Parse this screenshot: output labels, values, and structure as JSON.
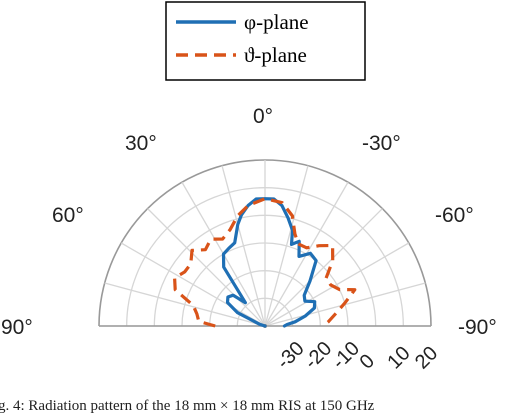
{
  "chart_data": {
    "type": "polar",
    "subtype": "half-polar radiation pattern",
    "theta_ticks": [
      "90°",
      "60°",
      "30°",
      "0°",
      "-30°",
      "-60°",
      "-90°"
    ],
    "theta_tick_values": [
      90,
      60,
      30,
      0,
      -30,
      -60,
      -90
    ],
    "r_ticks": [
      "-30",
      "-20",
      "-10",
      "0",
      "10",
      "20"
    ],
    "r_tick_values": [
      -30,
      -20,
      -10,
      0,
      10,
      20
    ],
    "rlim": [
      -40,
      20
    ],
    "grid": true,
    "legend_position": "top-center",
    "series": [
      {
        "name": "φ-plane",
        "color": "#1f6fb4",
        "style": "solid",
        "points": [
          [
            90,
            -40
          ],
          [
            80,
            -40
          ],
          [
            72,
            -38
          ],
          [
            64,
            -29
          ],
          [
            58,
            -24
          ],
          [
            52,
            -23
          ],
          [
            46,
            -24
          ],
          [
            40,
            -29
          ],
          [
            35,
            -14
          ],
          [
            30,
            -10
          ],
          [
            25,
            -9
          ],
          [
            20,
            -8
          ],
          [
            15,
            -2
          ],
          [
            12,
            1
          ],
          [
            8,
            4
          ],
          [
            4,
            6
          ],
          [
            0,
            6
          ],
          [
            -4,
            6
          ],
          [
            -8,
            4
          ],
          [
            -12,
            0
          ],
          [
            -16,
            -4
          ],
          [
            -18,
            -9
          ],
          [
            -22,
            -7
          ],
          [
            -26,
            -12
          ],
          [
            -32,
            -9
          ],
          [
            -38,
            -10
          ],
          [
            -45,
            -17
          ],
          [
            -52,
            -22
          ],
          [
            -58,
            -23
          ],
          [
            -64,
            -20
          ],
          [
            -70,
            -21
          ],
          [
            -76,
            -25
          ],
          [
            -82,
            -29
          ],
          [
            -86,
            -32
          ],
          [
            -90,
            -33
          ]
        ]
      },
      {
        "name": "ϑ-plane",
        "color": "#d95319",
        "style": "dashed",
        "points": [
          [
            90,
            -22
          ],
          [
            86,
            -16
          ],
          [
            80,
            -15
          ],
          [
            74,
            -13
          ],
          [
            68,
            -5
          ],
          [
            62,
            -3
          ],
          [
            56,
            -5
          ],
          [
            50,
            -5
          ],
          [
            44,
            -2
          ],
          [
            38,
            -5
          ],
          [
            32,
            -3
          ],
          [
            26,
            -5
          ],
          [
            20,
            -3
          ],
          [
            14,
            1
          ],
          [
            8,
            4
          ],
          [
            0,
            6
          ],
          [
            -8,
            5
          ],
          [
            -14,
            1
          ],
          [
            -18,
            -5
          ],
          [
            -22,
            -8
          ],
          [
            -28,
            -8
          ],
          [
            -34,
            -5
          ],
          [
            -40,
            -2
          ],
          [
            -46,
            -6
          ],
          [
            -52,
            -12
          ],
          [
            -58,
            -12
          ],
          [
            -64,
            -10
          ],
          [
            -68,
            -5
          ],
          [
            -74,
            -10
          ],
          [
            -80,
            -14
          ],
          [
            -86,
            -17
          ],
          [
            -90,
            -19
          ]
        ]
      }
    ]
  },
  "caption": "g. 4: Radiation pattern of the 18 mm × 18 mm RIS at 150 GHz"
}
